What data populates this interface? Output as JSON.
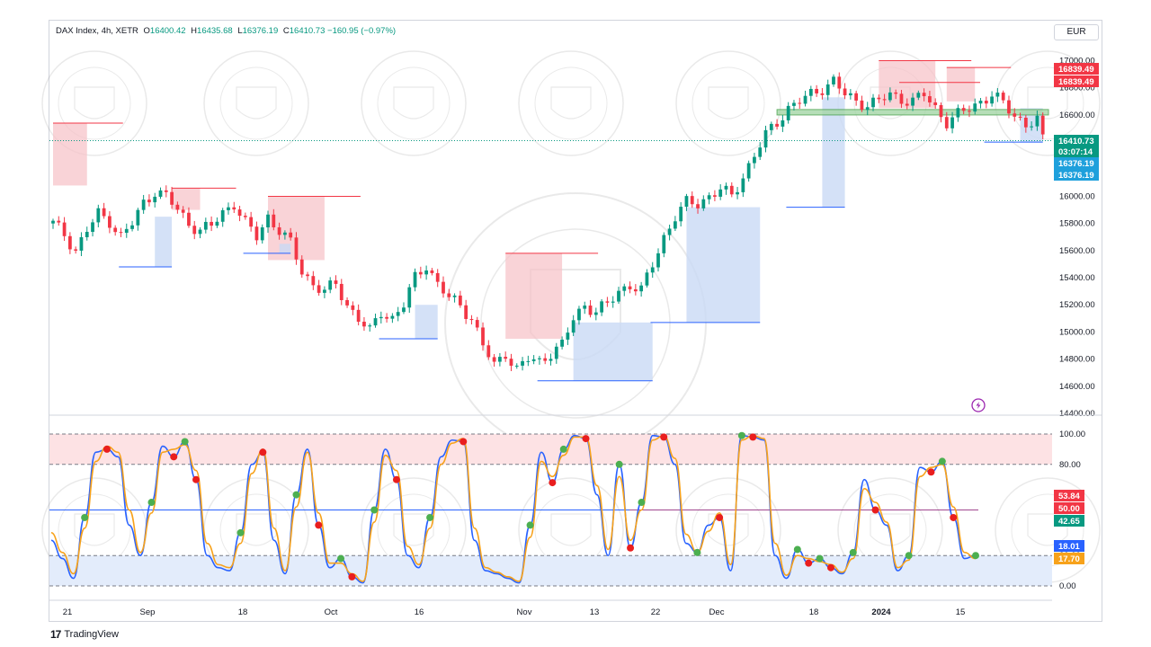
{
  "legend": {
    "symbol": "DAX Index, 4h, XETR",
    "open_label": "O",
    "open": "16400.42",
    "high_label": "H",
    "high": "16435.68",
    "low_label": "L",
    "low": "16376.19",
    "close_label": "C",
    "close": "16410.73",
    "change": "−160.95 (−0.97%)"
  },
  "currency": "EUR",
  "branding": {
    "logo_mark": "17",
    "logo_text": "TradingView"
  },
  "colors": {
    "up": "#089981",
    "down": "#f23645",
    "supply_zone": "#f7c1c6",
    "demand_zone": "#c9d9f5",
    "support_band": "#a5d6a7",
    "stoch_k": "#2962ff",
    "stoch_d": "#f7a21b",
    "overbought_band": "#fde2e4",
    "oversold_band": "#e3ecfb"
  },
  "price_badges": [
    {
      "value": "16839.49",
      "color": "#f23645"
    },
    {
      "value": "16839.49",
      "color": "#f23645"
    },
    {
      "value": "16410.73",
      "color": "#089981"
    },
    {
      "value": "03:07:14",
      "color": "#089981"
    },
    {
      "value": "16376.19",
      "color": "#1ea0dc"
    },
    {
      "value": "16376.19",
      "color": "#1ea0dc"
    }
  ],
  "osc_badges": [
    {
      "value": "53.84",
      "color": "#f23645"
    },
    {
      "value": "50.00",
      "color": "#f23645"
    },
    {
      "value": "42.65",
      "color": "#089981"
    },
    {
      "value": "18.01",
      "color": "#2962ff"
    },
    {
      "value": "17.70",
      "color": "#f7a21b"
    }
  ],
  "chart_data": [
    {
      "type": "candlestick",
      "title": "DAX Index, 4h, XETR",
      "y_axis_side": "right",
      "ylim": [
        14400,
        17050
      ],
      "y_ticks": [
        "17000.00",
        "16800.00",
        "16600.00",
        "16400.00",
        "16200.00",
        "16000.00",
        "15800.00",
        "15600.00",
        "15400.00",
        "15200.00",
        "15000.00",
        "14800.00",
        "14600.00",
        "14400.00"
      ],
      "x_ticks": [
        "21",
        "Sep",
        "18",
        "Oct",
        "16",
        "Nov",
        "13",
        "22",
        "Dec",
        "18",
        "2024",
        "15"
      ],
      "close_path": [
        [
          0,
          15800
        ],
        [
          2,
          15720
        ],
        [
          4,
          15600
        ],
        [
          6,
          15750
        ],
        [
          8,
          15870
        ],
        [
          10,
          15820
        ],
        [
          12,
          15700
        ],
        [
          14,
          15800
        ],
        [
          16,
          15950
        ],
        [
          18,
          16040
        ],
        [
          20,
          16000
        ],
        [
          22,
          15900
        ],
        [
          24,
          15800
        ],
        [
          26,
          15750
        ],
        [
          28,
          15780
        ],
        [
          30,
          15880
        ],
        [
          32,
          15950
        ],
        [
          34,
          15800
        ],
        [
          36,
          15700
        ],
        [
          38,
          15850
        ],
        [
          40,
          15750
        ],
        [
          42,
          15650
        ],
        [
          44,
          15450
        ],
        [
          46,
          15350
        ],
        [
          48,
          15300
        ],
        [
          50,
          15350
        ],
        [
          52,
          15200
        ],
        [
          54,
          15100
        ],
        [
          56,
          15000
        ],
        [
          58,
          15150
        ],
        [
          60,
          15100
        ],
        [
          62,
          15200
        ],
        [
          64,
          15400
        ],
        [
          66,
          15500
        ],
        [
          68,
          15350
        ],
        [
          70,
          15250
        ],
        [
          72,
          15200
        ],
        [
          74,
          15100
        ],
        [
          76,
          14900
        ],
        [
          78,
          14750
        ],
        [
          80,
          14850
        ],
        [
          82,
          14720
        ],
        [
          84,
          14800
        ],
        [
          86,
          14780
        ],
        [
          88,
          14850
        ],
        [
          90,
          14900
        ],
        [
          92,
          15100
        ],
        [
          94,
          15200
        ],
        [
          96,
          15150
        ],
        [
          98,
          15200
        ],
        [
          100,
          15300
        ],
        [
          102,
          15350
        ],
        [
          104,
          15300
        ],
        [
          106,
          15500
        ],
        [
          108,
          15700
        ],
        [
          110,
          15850
        ],
        [
          112,
          15950
        ],
        [
          114,
          15950
        ],
        [
          116,
          16000
        ],
        [
          118,
          16050
        ],
        [
          120,
          16000
        ],
        [
          122,
          16150
        ],
        [
          124,
          16300
        ],
        [
          126,
          16450
        ],
        [
          128,
          16550
        ],
        [
          130,
          16650
        ],
        [
          132,
          16700
        ],
        [
          134,
          16750
        ],
        [
          136,
          16800
        ],
        [
          138,
          16850
        ],
        [
          140,
          16750
        ],
        [
          142,
          16700
        ],
        [
          144,
          16680
        ],
        [
          146,
          16700
        ],
        [
          148,
          16750
        ],
        [
          150,
          16720
        ],
        [
          152,
          16700
        ],
        [
          154,
          16750
        ],
        [
          156,
          16650
        ],
        [
          158,
          16550
        ],
        [
          160,
          16600
        ],
        [
          162,
          16650
        ],
        [
          164,
          16700
        ],
        [
          166,
          16750
        ],
        [
          168,
          16680
        ],
        [
          170,
          16600
        ],
        [
          172,
          16530
        ],
        [
          174,
          16560
        ],
        [
          175,
          16410
        ]
      ],
      "supply_zones": [
        {
          "from": [
            0,
            6
          ],
          "range": [
            16080,
            16540
          ]
        },
        {
          "from": [
            21,
            26
          ],
          "range": [
            15900,
            16060
          ]
        },
        {
          "from": [
            38,
            48
          ],
          "range": [
            15530,
            16000
          ]
        },
        {
          "from": [
            80,
            90
          ],
          "range": [
            14950,
            15580
          ]
        },
        {
          "from": [
            146,
            156
          ],
          "range": [
            16650,
            17000
          ]
        },
        {
          "from": [
            158,
            163
          ],
          "range": [
            16700,
            16950
          ]
        }
      ],
      "demand_zones": [
        {
          "from": [
            18,
            21
          ],
          "range": [
            15480,
            15850
          ]
        },
        {
          "from": [
            40,
            42
          ],
          "range": [
            15580,
            15650
          ]
        },
        {
          "from": [
            64,
            68
          ],
          "range": [
            14950,
            15200
          ]
        },
        {
          "from": [
            92,
            106
          ],
          "range": [
            14640,
            15070
          ]
        },
        {
          "from": [
            112,
            125
          ],
          "range": [
            15070,
            15920
          ]
        },
        {
          "from": [
            136,
            140
          ],
          "range": [
            15920,
            16730
          ]
        },
        {
          "from": [
            171,
            175
          ],
          "range": [
            16400,
            16650
          ]
        }
      ],
      "support_band": {
        "from": [
          128,
          176
        ],
        "range": [
          16600,
          16640
        ]
      },
      "reference_lines": [
        16839.49,
        16410.73
      ]
    },
    {
      "type": "line",
      "title": "",
      "ylim": [
        0,
        100
      ],
      "y_ticks": [
        "100.00",
        "80.00",
        "20.00",
        "0.00"
      ],
      "overbought_band": [
        80,
        100
      ],
      "oversold_band": [
        0,
        20
      ],
      "mid_line": 50,
      "series": [
        {
          "name": "",
          "color": "#2962ff",
          "values": [
            30,
            18,
            5,
            45,
            88,
            90,
            85,
            40,
            20,
            55,
            92,
            85,
            95,
            70,
            20,
            12,
            10,
            35,
            80,
            88,
            30,
            8,
            60,
            90,
            40,
            12,
            18,
            6,
            2,
            50,
            90,
            70,
            20,
            12,
            45,
            85,
            96,
            95,
            30,
            10,
            8,
            5,
            2,
            40,
            88,
            68,
            90,
            99,
            97,
            60,
            20,
            80,
            25,
            55,
            99,
            98,
            80,
            28,
            22,
            40,
            45,
            10,
            99,
            98,
            96,
            20,
            5,
            24,
            15,
            18,
            12,
            8,
            22,
            70,
            50,
            40,
            10,
            20,
            78,
            75,
            82,
            45,
            18,
            20
          ]
        },
        {
          "name": "",
          "color": "#f7a21b",
          "values": [
            35,
            22,
            8,
            38,
            82,
            92,
            88,
            50,
            22,
            48,
            88,
            90,
            93,
            76,
            28,
            14,
            12,
            28,
            74,
            90,
            38,
            10,
            52,
            88,
            48,
            15,
            15,
            8,
            3,
            42,
            86,
            76,
            26,
            14,
            38,
            80,
            94,
            97,
            38,
            12,
            9,
            6,
            3,
            32,
            82,
            72,
            86,
            98,
            98,
            66,
            24,
            72,
            30,
            50,
            96,
            99,
            84,
            34,
            22,
            36,
            48,
            14,
            96,
            99,
            97,
            28,
            7,
            20,
            18,
            16,
            14,
            9,
            18,
            64,
            55,
            42,
            12,
            17,
            72,
            78,
            80,
            52,
            22,
            18
          ]
        }
      ],
      "legend_values": {
        "k": "18.01",
        "d": "17.70",
        "signal": "53.84",
        "mid": "50.00",
        "other": "42.65"
      }
    }
  ]
}
